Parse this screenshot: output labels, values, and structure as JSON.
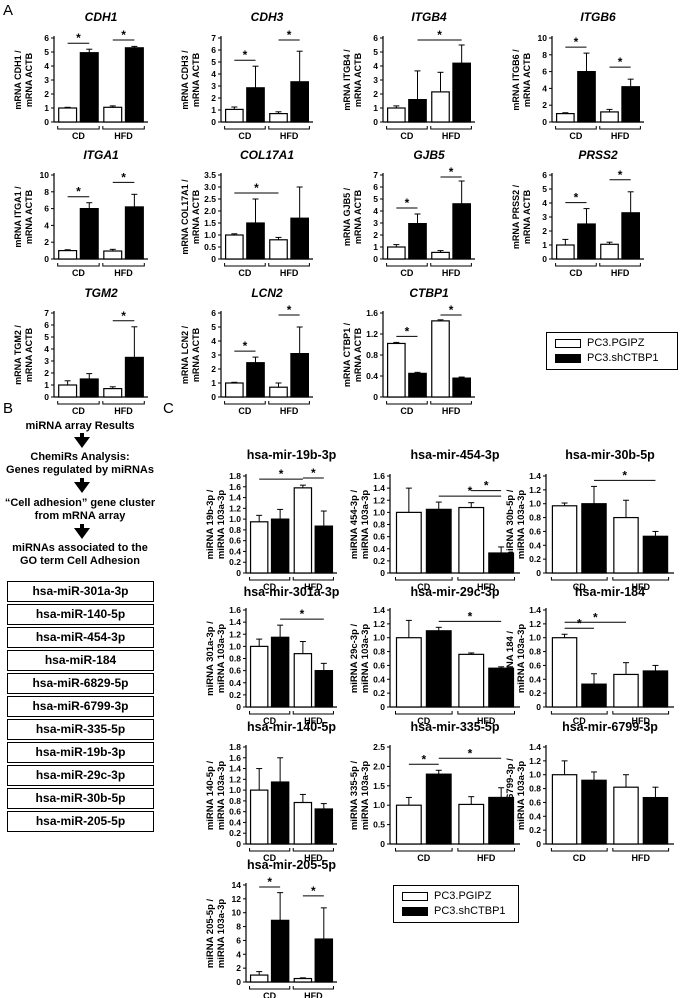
{
  "panels": {
    "a": "A",
    "b": "B",
    "c": "C"
  },
  "colors": {
    "control": "#ffffff",
    "knockdown": "#000000",
    "outline": "#000000"
  },
  "legend": {
    "control": "PC3.PGIPZ",
    "knockdown": "PC3.shCTBP1"
  },
  "flowchart": {
    "steps": [
      "miRNA array Results",
      "ChemiRs Analysis:\nGenes regulated  by miRNAs",
      "“Cell adhesion” gene cluster\nfrom mRNA array",
      "miRNAs associated to the\nGO term Cell Adhesion"
    ],
    "mirnas": [
      "hsa-miR-301a-3p",
      "hsa-miR-140-5p",
      "hsa-miR-454-3p",
      "hsa-miR-184",
      "hsa-miR-6829-5p",
      "hsa-miR-6799-3p",
      "hsa-miR-335-5p",
      "hsa-miR-19b-3p",
      "hsa-miR-29c-3p",
      "hsa-miR-30b-5p",
      "hsa-miR-205-5p"
    ]
  },
  "chart_data": [
    {
      "type": "bar",
      "title": "CDH1",
      "ylabel": "mRNA CDH1 / mRNA ACTB",
      "categories": [
        "CD",
        "HFD"
      ],
      "series": [
        {
          "name": "PC3.PGIPZ",
          "values": [
            1,
            1.05
          ]
        },
        {
          "name": "PC3.shCTBP1",
          "values": [
            4.95,
            5.3
          ]
        }
      ],
      "errors": [
        [
          0.05,
          0.1
        ],
        [
          0.25,
          0.1
        ]
      ],
      "ylim": [
        0,
        6
      ],
      "yticks": [
        "0",
        "1",
        "2",
        "3",
        "4",
        "5",
        "6"
      ],
      "sig": [
        [
          0,
          1
        ],
        [
          2,
          3
        ]
      ]
    },
    {
      "type": "bar",
      "title": "CDH3",
      "ylabel": "mRNA CDH3 / mRNA ACTB",
      "categories": [
        "CD",
        "HFD"
      ],
      "series": [
        {
          "name": "PC3.PGIPZ",
          "values": [
            1.05,
            0.7
          ]
        },
        {
          "name": "PC3.shCTBP1",
          "values": [
            2.85,
            3.35
          ]
        }
      ],
      "errors": [
        [
          0.2,
          0.15
        ],
        [
          1.8,
          2.55
        ]
      ],
      "ylim": [
        0,
        7
      ],
      "yticks": [
        "0",
        "1",
        "2",
        "3",
        "4",
        "5",
        "6",
        "7"
      ],
      "sig": [
        [
          0,
          1
        ],
        [
          2,
          3
        ]
      ]
    },
    {
      "type": "bar",
      "title": "ITGB4",
      "ylabel": "mRNA ITGB4 / mRNA ACTB",
      "categories": [
        "CD",
        "HFD"
      ],
      "series": [
        {
          "name": "PC3.PGIPZ",
          "values": [
            1.0,
            2.15
          ]
        },
        {
          "name": "PC3.shCTBP1",
          "values": [
            1.6,
            4.2
          ]
        }
      ],
      "errors": [
        [
          0.15,
          1.4
        ],
        [
          2.05,
          1.3
        ]
      ],
      "ylim": [
        0,
        6
      ],
      "yticks": [
        "0",
        "1",
        "2",
        "3",
        "4",
        "5",
        "6"
      ],
      "sig": [
        [
          1,
          3
        ]
      ]
    },
    {
      "type": "bar",
      "title": "ITGB6",
      "ylabel": "mRNA ITGB6 / mRNA ACTB",
      "categories": [
        "CD",
        "HFD"
      ],
      "series": [
        {
          "name": "PC3.PGIPZ",
          "values": [
            1.0,
            1.2
          ]
        },
        {
          "name": "PC3.shCTBP1",
          "values": [
            6.0,
            4.2
          ]
        }
      ],
      "errors": [
        [
          0.1,
          0.3
        ],
        [
          2.2,
          0.9
        ]
      ],
      "ylim": [
        0,
        10
      ],
      "yticks": [
        "0",
        "2",
        "4",
        "6",
        "8",
        "10"
      ],
      "sig": [
        [
          0,
          1
        ],
        [
          2,
          3
        ]
      ]
    },
    {
      "type": "bar",
      "title": "ITGA1",
      "ylabel": "mRNA ITGA1 / mRNA ACTB",
      "categories": [
        "CD",
        "HFD"
      ],
      "series": [
        {
          "name": "PC3.PGIPZ",
          "values": [
            1.0,
            0.95
          ]
        },
        {
          "name": "PC3.shCTBP1",
          "values": [
            6.0,
            6.2
          ]
        }
      ],
      "errors": [
        [
          0.1,
          0.2
        ],
        [
          0.7,
          1.5
        ]
      ],
      "ylim": [
        0,
        10
      ],
      "yticks": [
        "0",
        "2",
        "4",
        "6",
        "8",
        "10"
      ],
      "sig": [
        [
          0,
          1
        ],
        [
          2,
          3
        ]
      ]
    },
    {
      "type": "bar",
      "title": "COL17A1",
      "ylabel": "mRNA COL17A1 / mRNA ACTB",
      "categories": [
        "CD",
        "HFD"
      ],
      "series": [
        {
          "name": "PC3.PGIPZ",
          "values": [
            1.0,
            0.8
          ]
        },
        {
          "name": "PC3.shCTBP1",
          "values": [
            1.5,
            1.7
          ]
        }
      ],
      "errors": [
        [
          0.05,
          0.1
        ],
        [
          1.0,
          1.3
        ]
      ],
      "ylim": [
        0,
        3.5
      ],
      "yticks": [
        "0",
        "0.5",
        "1.0",
        "1.5",
        "2.0",
        "2.5",
        "3.0",
        "3.5"
      ],
      "sig": [
        [
          0,
          2
        ]
      ]
    },
    {
      "type": "bar",
      "title": "GJB5",
      "ylabel": "mRNA GJB5 / mRNA ACTB",
      "categories": [
        "CD",
        "HFD"
      ],
      "series": [
        {
          "name": "PC3.PGIPZ",
          "values": [
            1.0,
            0.55
          ]
        },
        {
          "name": "PC3.shCTBP1",
          "values": [
            2.95,
            4.6
          ]
        }
      ],
      "errors": [
        [
          0.2,
          0.15
        ],
        [
          0.8,
          1.9
        ]
      ],
      "ylim": [
        0,
        7
      ],
      "yticks": [
        "0",
        "1",
        "2",
        "3",
        "4",
        "5",
        "6",
        "7"
      ],
      "sig": [
        [
          0,
          1
        ],
        [
          2,
          3
        ]
      ]
    },
    {
      "type": "bar",
      "title": "PRSS2",
      "ylabel": "mRNA PRSS2 / mRNA ACTB",
      "categories": [
        "CD",
        "HFD"
      ],
      "series": [
        {
          "name": "PC3.PGIPZ",
          "values": [
            1.0,
            1.05
          ]
        },
        {
          "name": "PC3.shCTBP1",
          "values": [
            2.5,
            3.3
          ]
        }
      ],
      "errors": [
        [
          0.4,
          0.15
        ],
        [
          1.1,
          1.5
        ]
      ],
      "ylim": [
        0,
        6
      ],
      "yticks": [
        "0",
        "1",
        "2",
        "3",
        "4",
        "5",
        "6"
      ],
      "sig": [
        [
          0,
          1
        ],
        [
          2,
          3
        ]
      ]
    },
    {
      "type": "bar",
      "title": "TGM2",
      "ylabel": "mRNA TGM2 / mRNA ACTB",
      "categories": [
        "CD",
        "HFD"
      ],
      "series": [
        {
          "name": "PC3.PGIPZ",
          "values": [
            1.0,
            0.7
          ]
        },
        {
          "name": "PC3.shCTBP1",
          "values": [
            1.5,
            3.3
          ]
        }
      ],
      "errors": [
        [
          0.35,
          0.15
        ],
        [
          0.45,
          2.55
        ]
      ],
      "ylim": [
        0,
        7
      ],
      "yticks": [
        "0",
        "1",
        "2",
        "3",
        "4",
        "5",
        "6",
        "7"
      ],
      "sig": [
        [
          2,
          3
        ]
      ]
    },
    {
      "type": "bar",
      "title": "LCN2",
      "ylabel": "mRNA LCN2 / mRNA ACTB",
      "categories": [
        "CD",
        "HFD"
      ],
      "series": [
        {
          "name": "PC3.PGIPZ",
          "values": [
            1.0,
            0.7
          ]
        },
        {
          "name": "PC3.shCTBP1",
          "values": [
            2.45,
            3.1
          ]
        }
      ],
      "errors": [
        [
          0.05,
          0.3
        ],
        [
          0.4,
          1.9
        ]
      ],
      "ylim": [
        0,
        6
      ],
      "yticks": [
        "0",
        "1",
        "2",
        "3",
        "4",
        "5",
        "6"
      ],
      "sig": [
        [
          0,
          1
        ],
        [
          2,
          3
        ]
      ]
    },
    {
      "type": "bar",
      "title": "CTBP1",
      "ylabel": "mRNA CTBP1 / mRNA ACTB",
      "categories": [
        "CD",
        "HFD"
      ],
      "series": [
        {
          "name": "PC3.PGIPZ",
          "values": [
            1.02,
            1.45
          ]
        },
        {
          "name": "PC3.shCTBP1",
          "values": [
            0.45,
            0.36
          ]
        }
      ],
      "errors": [
        [
          0.02,
          0.02
        ],
        [
          0.02,
          0.02
        ]
      ],
      "ylim": [
        0,
        1.6
      ],
      "yticks": [
        "0",
        "0.4",
        "0.8",
        "1.2",
        "1.6"
      ],
      "sig": [
        [
          0,
          1
        ],
        [
          2,
          3
        ]
      ]
    },
    {
      "type": "bar",
      "title": "hsa-mir-19b-3p",
      "ylabel": "miRNA 19b-3p/ miRNA 103a-3p",
      "categories": [
        "CD",
        "HFD"
      ],
      "series": [
        {
          "name": "PC3.PGIPZ",
          "values": [
            0.95,
            1.58
          ]
        },
        {
          "name": "PC3.shCTBP1",
          "values": [
            1.0,
            0.87
          ]
        }
      ],
      "errors": [
        [
          0.12,
          0.05
        ],
        [
          0.18,
          0.28
        ]
      ],
      "ylim": [
        0,
        1.8
      ],
      "yticks": [
        "0",
        "0.2",
        "0.4",
        "0.6",
        "0.8",
        "1.0",
        "1.2",
        "1.4",
        "1.6",
        "1.8"
      ],
      "sig": [
        [
          0,
          2
        ],
        [
          2,
          3
        ]
      ]
    },
    {
      "type": "bar",
      "title": "hsa-mir-454-3p",
      "ylabel": "miRNA 454-3p/ miRNA 103a-3p",
      "categories": [
        "CD",
        "HFD"
      ],
      "series": [
        {
          "name": "PC3.PGIPZ",
          "values": [
            1.0,
            1.08
          ]
        },
        {
          "name": "PC3.shCTBP1",
          "values": [
            1.05,
            0.33
          ]
        }
      ],
      "errors": [
        [
          0.4,
          0.08
        ],
        [
          0.12,
          0.1
        ]
      ],
      "ylim": [
        0,
        1.6
      ],
      "yticks": [
        "0",
        "0.2",
        "0.4",
        "0.6",
        "0.8",
        "1.0",
        "1.2",
        "1.4",
        "1.6"
      ],
      "sig": [
        [
          1,
          3
        ],
        [
          2,
          3
        ]
      ]
    },
    {
      "type": "bar",
      "title": "hsa-mir-30b-5p",
      "ylabel": "miRNA 30b-5p/ miRNA 103a-3p",
      "categories": [
        "CD",
        "HFD"
      ],
      "series": [
        {
          "name": "PC3.PGIPZ",
          "values": [
            0.97,
            0.8
          ]
        },
        {
          "name": "PC3.shCTBP1",
          "values": [
            1.0,
            0.53
          ]
        }
      ],
      "errors": [
        [
          0.04,
          0.25
        ],
        [
          0.25,
          0.07
        ]
      ],
      "ylim": [
        0,
        1.4
      ],
      "yticks": [
        "0",
        "0.2",
        "0.4",
        "0.6",
        "0.8",
        "1.0",
        "1.2",
        "1.4"
      ],
      "sig": [
        [
          1,
          3
        ]
      ]
    },
    {
      "type": "bar",
      "title": "hsa-mir-301a-3p",
      "ylabel": "miRNA 301a-3p/ miRNA 103a-3p",
      "categories": [
        "CD",
        "HFD"
      ],
      "series": [
        {
          "name": "PC3.PGIPZ",
          "values": [
            1.0,
            0.88
          ]
        },
        {
          "name": "PC3.shCTBP1",
          "values": [
            1.15,
            0.6
          ]
        }
      ],
      "errors": [
        [
          0.12,
          0.2
        ],
        [
          0.2,
          0.12
        ]
      ],
      "ylim": [
        0,
        1.6
      ],
      "yticks": [
        "0",
        "0.2",
        "0.4",
        "0.6",
        "0.8",
        "1.0",
        "1.2",
        "1.4",
        "1.6"
      ],
      "sig": [
        [
          1,
          3
        ]
      ]
    },
    {
      "type": "bar",
      "title": "hsa-mir-29c-3p",
      "ylabel": "miRNA 29c-3p/ miRNA 103a-3p",
      "categories": [
        "CD",
        "HFD"
      ],
      "series": [
        {
          "name": "PC3.PGIPZ",
          "values": [
            1.0,
            0.76
          ]
        },
        {
          "name": "PC3.shCTBP1",
          "values": [
            1.1,
            0.56
          ]
        }
      ],
      "errors": [
        [
          0.25,
          0.02
        ],
        [
          0.05,
          0.02
        ]
      ],
      "ylim": [
        0,
        1.4
      ],
      "yticks": [
        "0",
        "0.2",
        "0.4",
        "0.6",
        "0.8",
        "1.0",
        "1.2",
        "1.4"
      ],
      "sig": [
        [
          1,
          3
        ]
      ]
    },
    {
      "type": "bar",
      "title": "hsa-mir-184",
      "ylabel": "miRNA 184/ miRNA 103a-3p",
      "categories": [
        "CD",
        "HFD"
      ],
      "series": [
        {
          "name": "PC3.PGIPZ",
          "values": [
            1.0,
            0.47
          ]
        },
        {
          "name": "PC3.shCTBP1",
          "values": [
            0.33,
            0.52
          ]
        }
      ],
      "errors": [
        [
          0.05,
          0.17
        ],
        [
          0.15,
          0.08
        ]
      ],
      "ylim": [
        0,
        1.4
      ],
      "yticks": [
        "0",
        "0.2",
        "0.4",
        "0.6",
        "0.8",
        "1.0",
        "1.2",
        "1.4"
      ],
      "sig": [
        [
          0,
          1
        ],
        [
          0,
          2
        ]
      ]
    },
    {
      "type": "bar",
      "title": "hsa-mir-140-5p",
      "ylabel": "miRNA 140-5p/ miRNA 103a-3p",
      "categories": [
        "CD",
        "HFD"
      ],
      "series": [
        {
          "name": "PC3.PGIPZ",
          "values": [
            1.0,
            0.77
          ]
        },
        {
          "name": "PC3.shCTBP1",
          "values": [
            1.15,
            0.65
          ]
        }
      ],
      "errors": [
        [
          0.4,
          0.15
        ],
        [
          0.45,
          0.1
        ]
      ],
      "ylim": [
        0,
        1.8
      ],
      "yticks": [
        "0",
        "0.2",
        "0.4",
        "0.6",
        "0.8",
        "1.0",
        "1.2",
        "1.4",
        "1.6",
        "1.8"
      ],
      "sig": []
    },
    {
      "type": "bar",
      "title": "hsa-mir-335-5p",
      "ylabel": "miRNA 335-5p/ miRNA 103a-3p",
      "categories": [
        "CD",
        "HFD"
      ],
      "series": [
        {
          "name": "PC3.PGIPZ",
          "values": [
            1.0,
            1.02
          ]
        },
        {
          "name": "PC3.shCTBP1",
          "values": [
            1.8,
            1.2
          ]
        }
      ],
      "errors": [
        [
          0.2,
          0.2
        ],
        [
          0.1,
          0.25
        ]
      ],
      "ylim": [
        0,
        2.5
      ],
      "yticks": [
        "0",
        "0.5",
        "1.0",
        "1.5",
        "2.0",
        "2.5"
      ],
      "sig": [
        [
          0,
          1
        ],
        [
          1,
          3
        ]
      ]
    },
    {
      "type": "bar",
      "title": "hsa-mir-6799-3p",
      "ylabel": "miRNA 6799-3p/ miRNA 103a-3p",
      "categories": [
        "CD",
        "HFD"
      ],
      "series": [
        {
          "name": "PC3.PGIPZ",
          "values": [
            1.0,
            0.82
          ]
        },
        {
          "name": "PC3.shCTBP1",
          "values": [
            0.92,
            0.67
          ]
        }
      ],
      "errors": [
        [
          0.2,
          0.18
        ],
        [
          0.12,
          0.15
        ]
      ],
      "ylim": [
        0,
        1.4
      ],
      "yticks": [
        "0",
        "0.2",
        "0.4",
        "0.6",
        "0.8",
        "1.0",
        "1.2",
        "1.4"
      ],
      "sig": []
    },
    {
      "type": "bar",
      "title": "hsa-mir-205-5p",
      "ylabel": "miRNA 205-5p/ miRNA 103a-3p",
      "categories": [
        "CD",
        "HFD"
      ],
      "series": [
        {
          "name": "PC3.PGIPZ",
          "values": [
            1.0,
            0.5
          ]
        },
        {
          "name": "PC3.shCTBP1",
          "values": [
            8.9,
            6.2
          ]
        }
      ],
      "errors": [
        [
          0.5,
          0.1
        ],
        [
          4.0,
          4.5
        ]
      ],
      "ylim": [
        0,
        14
      ],
      "yticks": [
        "0",
        "2",
        "4",
        "6",
        "8",
        "10",
        "12",
        "14"
      ],
      "sig": [
        [
          0,
          1
        ],
        [
          2,
          3
        ]
      ]
    }
  ]
}
